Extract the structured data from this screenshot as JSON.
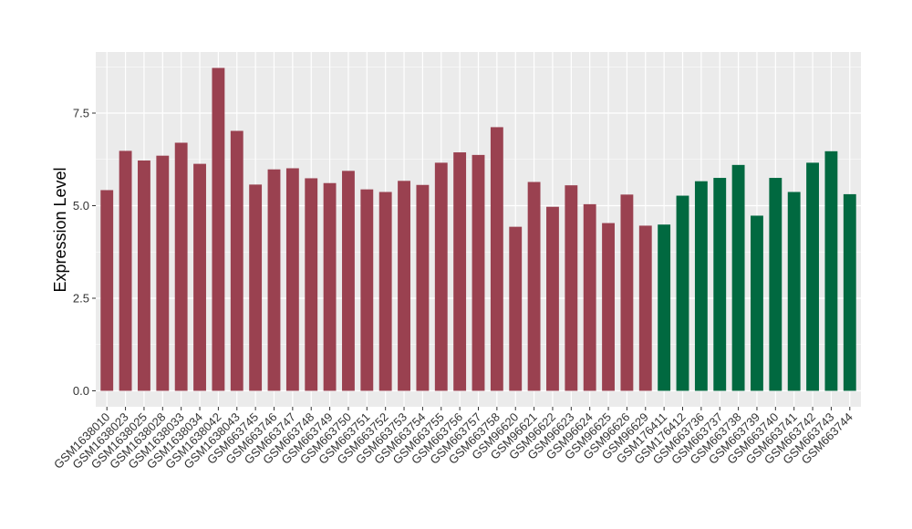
{
  "chart_data": {
    "type": "bar",
    "title": "",
    "xlabel": "",
    "ylabel": "Expression Level",
    "ylim": [
      0,
      9.0
    ],
    "yticks": [
      0.0,
      2.5,
      5.0,
      7.5
    ],
    "ytick_labels": [
      "0.0",
      "2.5",
      "5.0",
      "7.5"
    ],
    "grid": true,
    "legend": "none",
    "colors": {
      "group1": "#9a4150",
      "group2": "#016940",
      "panel_bg": "#ebebeb",
      "grid": "#ffffff"
    },
    "categories": [
      "GSM1638010",
      "GSM1638023",
      "GSM1638025",
      "GSM1638028",
      "GSM1638033",
      "GSM1638034",
      "GSM1638042",
      "GSM1638043",
      "GSM663745",
      "GSM663746",
      "GSM663747",
      "GSM663748",
      "GSM663749",
      "GSM663750",
      "GSM663751",
      "GSM663752",
      "GSM663753",
      "GSM663754",
      "GSM663755",
      "GSM663756",
      "GSM663757",
      "GSM663758",
      "GSM96620",
      "GSM96621",
      "GSM96622",
      "GSM96623",
      "GSM96624",
      "GSM96625",
      "GSM96626",
      "GSM96629",
      "GSM176411",
      "GSM176412",
      "GSM663736",
      "GSM663737",
      "GSM663738",
      "GSM663739",
      "GSM663740",
      "GSM663741",
      "GSM663742",
      "GSM663743",
      "GSM663744"
    ],
    "values": [
      5.42,
      6.48,
      6.22,
      6.35,
      6.7,
      6.13,
      8.72,
      7.02,
      5.57,
      5.98,
      6.01,
      5.74,
      5.61,
      5.94,
      5.44,
      5.37,
      5.67,
      5.56,
      6.16,
      6.44,
      6.37,
      7.12,
      4.43,
      5.64,
      4.97,
      5.55,
      5.04,
      4.53,
      5.3,
      4.46,
      4.49,
      5.27,
      5.66,
      5.75,
      6.1,
      4.73,
      5.75,
      5.37,
      6.16,
      6.47,
      5.31
    ],
    "groups": [
      "group1",
      "group1",
      "group1",
      "group1",
      "group1",
      "group1",
      "group1",
      "group1",
      "group1",
      "group1",
      "group1",
      "group1",
      "group1",
      "group1",
      "group1",
      "group1",
      "group1",
      "group1",
      "group1",
      "group1",
      "group1",
      "group1",
      "group1",
      "group1",
      "group1",
      "group1",
      "group1",
      "group1",
      "group1",
      "group1",
      "group2",
      "group2",
      "group2",
      "group2",
      "group2",
      "group2",
      "group2",
      "group2",
      "group2",
      "group2",
      "group2"
    ]
  }
}
